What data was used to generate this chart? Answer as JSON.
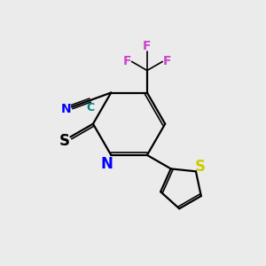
{
  "background_color": "#ebebeb",
  "bond_color": "#000000",
  "N_color": "#0000ff",
  "S_thione_color": "#000000",
  "S_thiophene_color": "#cccc00",
  "F_color": "#cc44cc",
  "CN_C_color": "#008080",
  "CN_N_color": "#0000ff",
  "figsize": [
    3.0,
    3.0
  ],
  "dpi": 100,
  "xlim": [
    0,
    10
  ],
  "ylim": [
    0,
    10
  ]
}
